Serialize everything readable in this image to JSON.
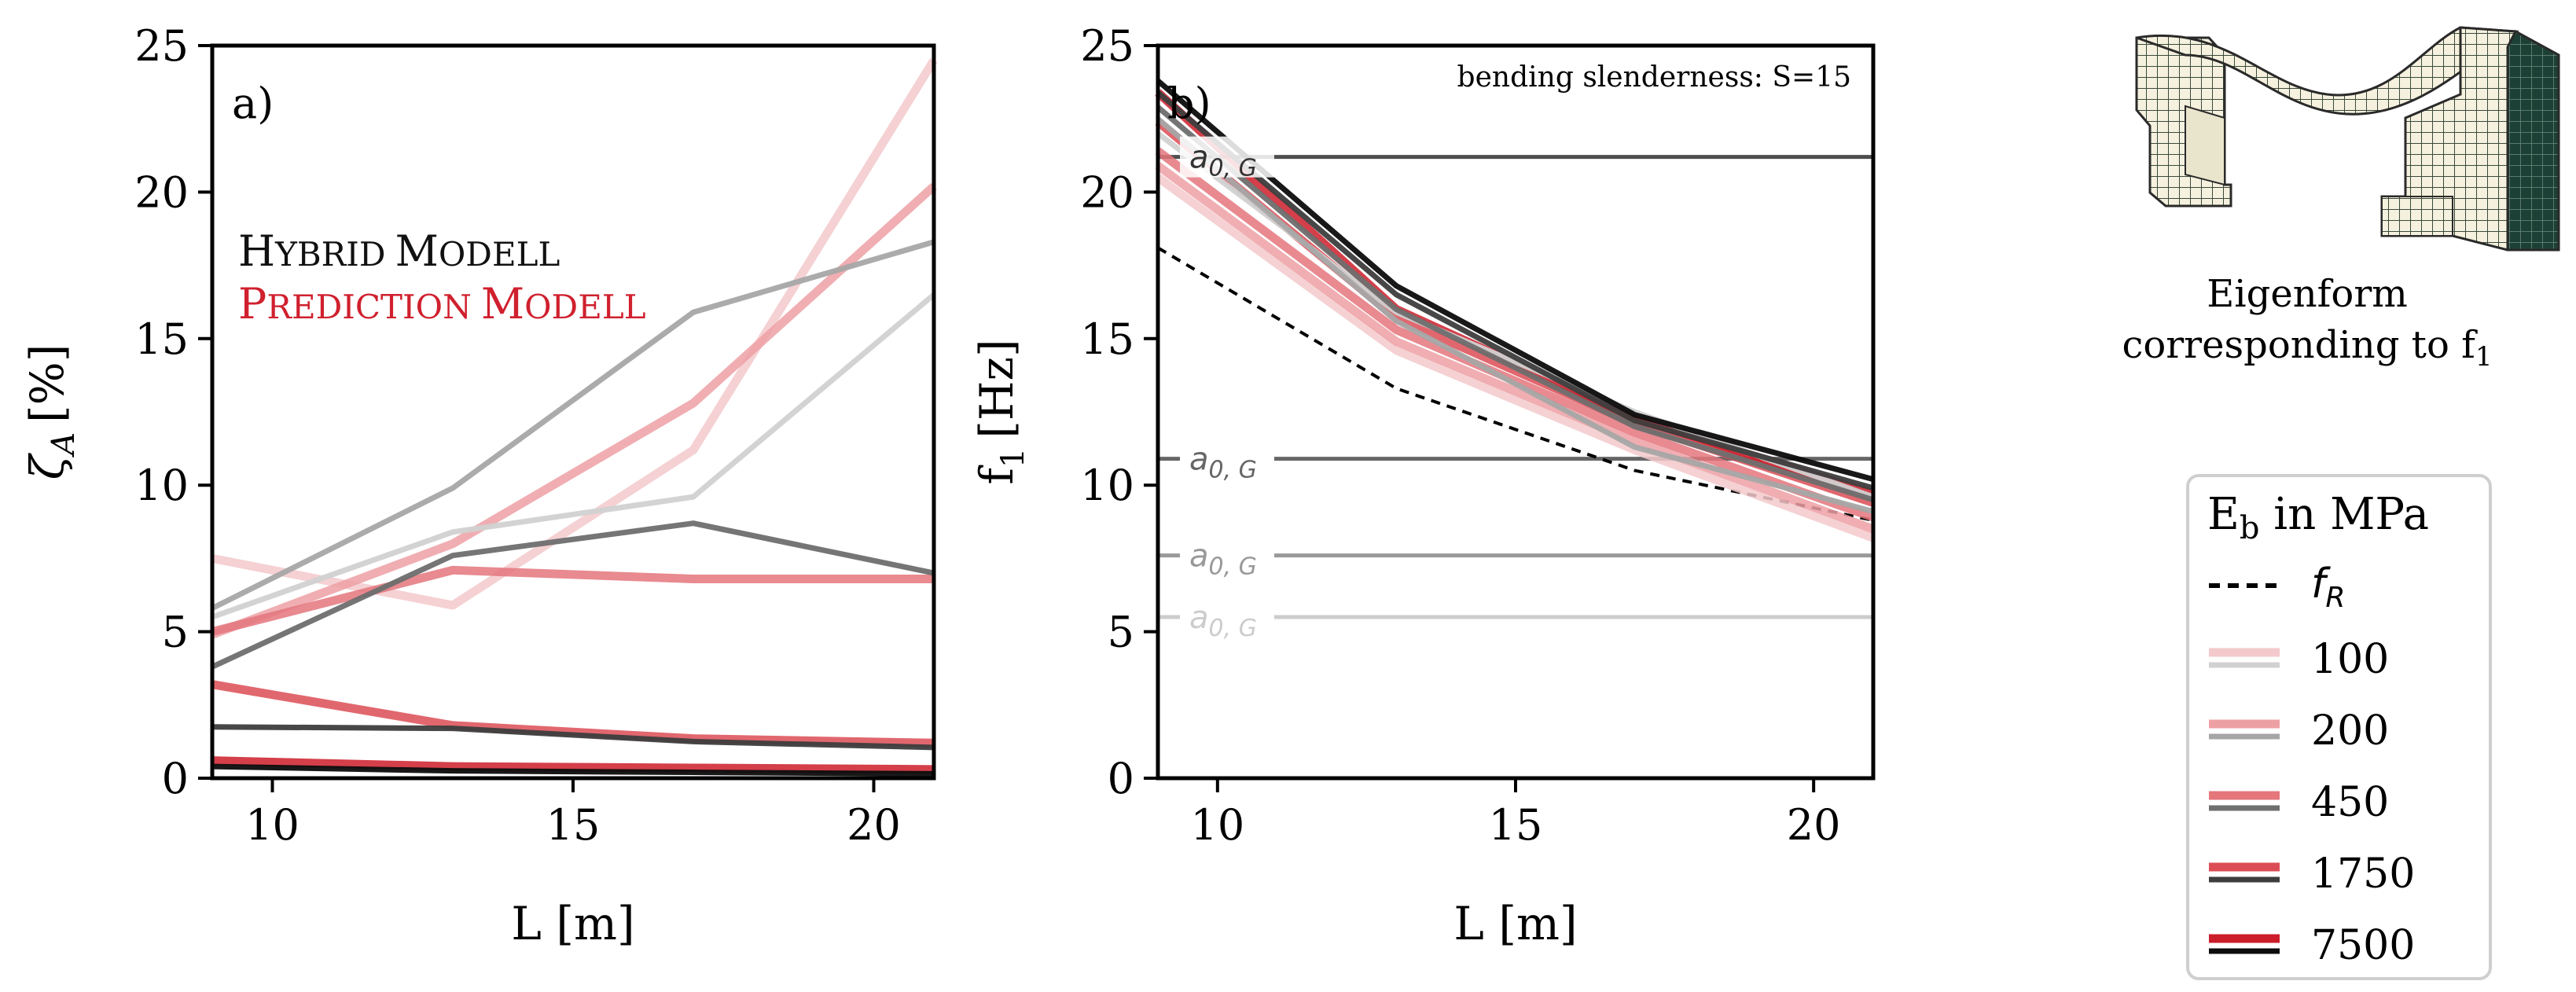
{
  "chart_data": [
    {
      "id": "panel-a",
      "type": "line",
      "panel_label": "a)",
      "xlabel": "L [m]",
      "ylabel": "ζ",
      "ylabel_sub": "A",
      "ylabel_unit": "[%]",
      "xlim": [
        9,
        21
      ],
      "ylim": [
        0,
        25
      ],
      "xticks": [
        10,
        15,
        20
      ],
      "yticks": [
        0,
        5,
        10,
        15,
        20,
        25
      ],
      "legend_hybrid_big1": "H",
      "legend_hybrid_small1": "YBRID",
      "legend_hybrid_big2": "M",
      "legend_hybrid_small2": "ODELL",
      "legend_pred_big1": "P",
      "legend_pred_small1": "REDICTION",
      "legend_pred_big2": "M",
      "legend_pred_small2": "ODELL",
      "x": [
        9,
        13,
        17,
        21
      ],
      "series": [
        {
          "name": "Prediction 100",
          "model": "prediction",
          "eb": 100,
          "values": [
            7.5,
            5.9,
            11.2,
            24.5
          ]
        },
        {
          "name": "Prediction 200",
          "model": "prediction",
          "eb": 200,
          "values": [
            4.9,
            8.0,
            12.8,
            20.2
          ]
        },
        {
          "name": "Prediction 450",
          "model": "prediction",
          "eb": 450,
          "values": [
            5.0,
            7.1,
            6.8,
            6.8
          ]
        },
        {
          "name": "Prediction 1750",
          "model": "prediction",
          "eb": 1750,
          "values": [
            3.2,
            1.8,
            1.35,
            1.2
          ]
        },
        {
          "name": "Prediction 7500",
          "model": "prediction",
          "eb": 7500,
          "values": [
            0.6,
            0.4,
            0.35,
            0.3
          ]
        },
        {
          "name": "Hybrid 100",
          "model": "hybrid",
          "eb": 100,
          "values": [
            5.5,
            8.4,
            9.6,
            16.5
          ]
        },
        {
          "name": "Hybrid 200",
          "model": "hybrid",
          "eb": 200,
          "values": [
            5.8,
            9.9,
            15.9,
            18.3
          ]
        },
        {
          "name": "Hybrid 450",
          "model": "hybrid",
          "eb": 450,
          "values": [
            3.8,
            7.6,
            8.7,
            7.0
          ]
        },
        {
          "name": "Hybrid 1750",
          "model": "hybrid",
          "eb": 1750,
          "values": [
            1.75,
            1.7,
            1.25,
            1.05
          ]
        },
        {
          "name": "Hybrid 7500",
          "model": "hybrid",
          "eb": 7500,
          "values": [
            0.4,
            0.25,
            0.2,
            0.15
          ]
        }
      ]
    },
    {
      "id": "panel-b",
      "type": "line",
      "panel_label": "b)",
      "annotation": "bending slenderness: S=15",
      "xlabel": "L [m]",
      "ylabel": "f",
      "ylabel_sub": "1",
      "ylabel_unit": "[Hz]",
      "xlim": [
        9,
        21
      ],
      "ylim": [
        0,
        25
      ],
      "xticks": [
        10,
        15,
        20
      ],
      "yticks": [
        0,
        5,
        10,
        15,
        20,
        25
      ],
      "x": [
        9,
        13,
        17,
        21
      ],
      "fR": [
        18.1,
        13.3,
        10.5,
        8.8
      ],
      "series": [
        {
          "name": "Prediction 100",
          "model": "prediction",
          "eb": 100,
          "values": [
            20.5,
            14.6,
            11.2,
            8.2
          ]
        },
        {
          "name": "Prediction 200",
          "model": "prediction",
          "eb": 200,
          "values": [
            20.9,
            14.9,
            11.5,
            8.5
          ]
        },
        {
          "name": "Prediction 450",
          "model": "prediction",
          "eb": 450,
          "values": [
            21.4,
            15.3,
            11.8,
            8.9
          ]
        },
        {
          "name": "Prediction 1750",
          "model": "prediction",
          "eb": 1750,
          "values": [
            22.4,
            15.7,
            12.1,
            9.4
          ]
        },
        {
          "name": "Prediction 7500",
          "model": "prediction",
          "eb": 7500,
          "values": [
            23.4,
            16.0,
            12.3,
            9.7
          ]
        },
        {
          "name": "Hybrid 100",
          "model": "hybrid",
          "eb": 100,
          "values": [
            22.0,
            15.9,
            12.5,
            9.6
          ]
        },
        {
          "name": "Hybrid 200",
          "model": "hybrid",
          "eb": 200,
          "values": [
            22.5,
            15.6,
            11.3,
            9.1
          ]
        },
        {
          "name": "Hybrid 450",
          "model": "hybrid",
          "eb": 450,
          "values": [
            22.9,
            16.0,
            12.0,
            9.5
          ]
        },
        {
          "name": "Hybrid 1750",
          "model": "hybrid",
          "eb": 1750,
          "values": [
            23.4,
            16.5,
            12.2,
            9.9
          ]
        },
        {
          "name": "Hybrid 7500",
          "model": "hybrid",
          "eb": 7500,
          "values": [
            23.8,
            16.8,
            12.4,
            10.2
          ]
        }
      ],
      "a0_lines": [
        {
          "label": "a",
          "sub": "0, G",
          "value": 21.2,
          "color": "#4d4d4d"
        },
        {
          "label": "a",
          "sub": "0, G",
          "value": 10.9,
          "color": "#666666"
        },
        {
          "label": "a",
          "sub": "0, G",
          "value": 7.6,
          "color": "#999999"
        },
        {
          "label": "a",
          "sub": "0, G",
          "value": 5.5,
          "color": "#cccccc"
        }
      ]
    }
  ],
  "colors": {
    "prediction": {
      "100": "#f3c9cb",
      "200": "#eda0a4",
      "450": "#e4767c",
      "1750": "#dc4c55",
      "7500": "#cc1d2a"
    },
    "hybrid": {
      "100": "#d1d1d1",
      "200": "#a6a6a6",
      "450": "#6e6e6e",
      "1750": "#3d3d3d",
      "7500": "#0c0c0c"
    },
    "prediction_text": "#d0202e",
    "hybrid_text": "#111111"
  },
  "legend": {
    "title_main": "E",
    "title_sub": "b",
    "title_rest": " in MPa",
    "fR_label": "f",
    "fR_sub": "R",
    "entries": [
      {
        "label": "100",
        "eb": 100
      },
      {
        "label": "200",
        "eb": 200
      },
      {
        "label": "450",
        "eb": 450
      },
      {
        "label": "1750",
        "eb": 1750
      },
      {
        "label": "7500",
        "eb": 7500
      }
    ]
  },
  "eigenform": {
    "caption_line1": "Eigenform",
    "caption_line2": "corresponding to f",
    "caption_sub": "1",
    "icon": "mesh-eigenform-icon"
  }
}
